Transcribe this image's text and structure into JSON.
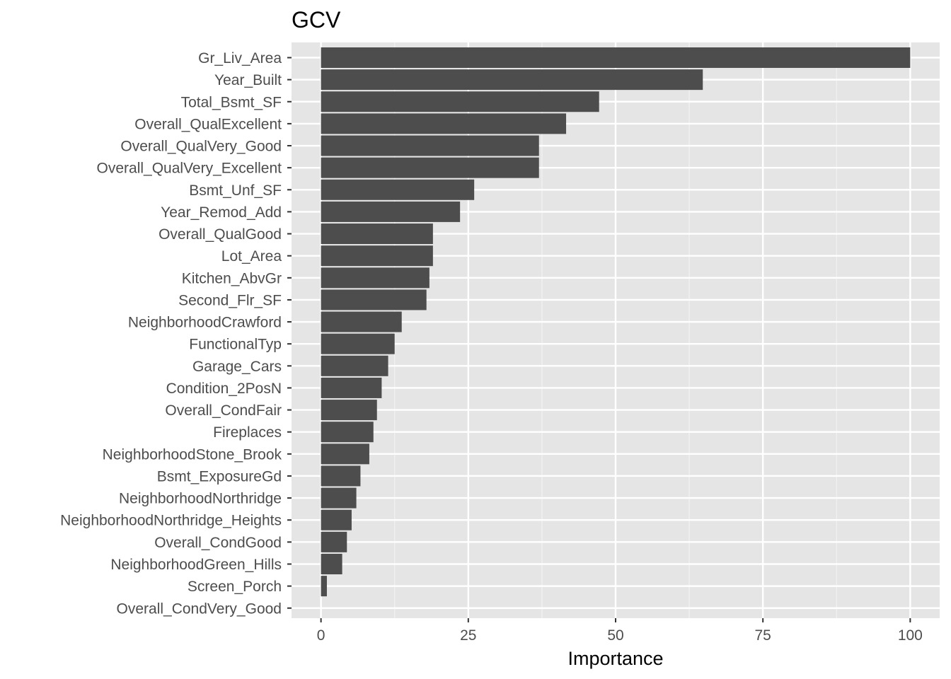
{
  "chart_data": {
    "type": "bar",
    "orientation": "horizontal",
    "title": "GCV",
    "xlabel": "Importance",
    "ylabel": "",
    "xlim": [
      -5,
      105
    ],
    "x_ticks": [
      0,
      25,
      50,
      75,
      100
    ],
    "grid": true,
    "categories": [
      "Gr_Liv_Area",
      "Year_Built",
      "Total_Bsmt_SF",
      "Overall_QualExcellent",
      "Overall_QualVery_Good",
      "Overall_QualVery_Excellent",
      "Bsmt_Unf_SF",
      "Year_Remod_Add",
      "Overall_QualGood",
      "Lot_Area",
      "Kitchen_AbvGr",
      "Second_Flr_SF",
      "NeighborhoodCrawford",
      "FunctionalTyp",
      "Garage_Cars",
      "Condition_2PosN",
      "Overall_CondFair",
      "Fireplaces",
      "NeighborhoodStone_Brook",
      "Bsmt_ExposureGd",
      "NeighborhoodNorthridge",
      "NeighborhoodNorthridge_Heights",
      "Overall_CondGood",
      "NeighborhoodGreen_Hills",
      "Screen_Porch",
      "Overall_CondVery_Good"
    ],
    "values": [
      100,
      64.8,
      47.2,
      41.6,
      37.0,
      37.0,
      26.0,
      23.6,
      19.0,
      19.0,
      18.4,
      17.9,
      13.7,
      12.5,
      11.4,
      10.3,
      9.5,
      8.9,
      8.2,
      6.7,
      6.0,
      5.2,
      4.4,
      3.6,
      1.0,
      0
    ],
    "colors": {
      "bar": "#4d4d4d",
      "panel_background": "#e5e5e5",
      "grid_major": "#ffffff",
      "grid_minor": "#f2f2f2",
      "tick_label": "#4d4d4d",
      "tick_mark": "#333333"
    }
  }
}
